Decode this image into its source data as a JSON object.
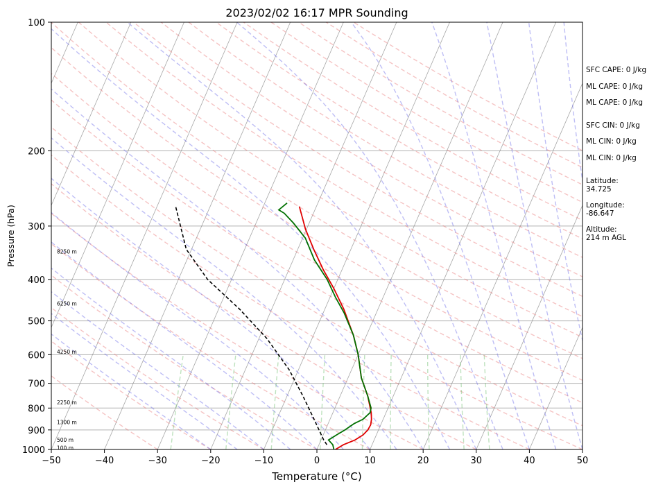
{
  "chart_data": {
    "type": "line",
    "title": "2023/02/02 16:17 MPR Sounding",
    "xlabel": "Temperature (°C)",
    "ylabel": "Pressure (hPa)",
    "xlim": [
      -50,
      50
    ],
    "ylim": [
      1000,
      100
    ],
    "y_scale": "log",
    "skew": "skew-T log-P",
    "grid": "horizontal isobars",
    "x_ticks": [
      "−50",
      "−40",
      "−30",
      "−20",
      "−10",
      "0",
      "10",
      "20",
      "30",
      "40",
      "50"
    ],
    "y_ticks": [
      "100",
      "200",
      "300",
      "400",
      "500",
      "600",
      "700",
      "800",
      "900",
      "1000"
    ],
    "height_labels": [
      {
        "text": "8250 m",
        "p": 345
      },
      {
        "text": "6250 m",
        "p": 457
      },
      {
        "text": "4250 m",
        "p": 592
      },
      {
        "text": "2250 m",
        "p": 778
      },
      {
        "text": "1300 m",
        "p": 866
      },
      {
        "text": "500 m",
        "p": 952
      },
      {
        "text": "100 m",
        "p": 995
      }
    ],
    "series": [
      {
        "role": "temperature",
        "color": "#e00000",
        "x": [
          3.5,
          4.6,
          6.4,
          7.5,
          8.0,
          8.1,
          7.8,
          7.2,
          5.2,
          2.5,
          0.0,
          -2.5,
          -6.4,
          -10.0,
          -13.5,
          -17.0,
          -20.2,
          -23.2
        ],
        "y": [
          1000,
          975,
          950,
          925,
          900,
          875,
          850,
          820,
          750,
          680,
          600,
          540,
          470,
          420,
          380,
          340,
          305,
          270
        ]
      },
      {
        "role": "dewpoint",
        "color": "#007000",
        "x": [
          3.2,
          2.6,
          1.4,
          2.5,
          3.7,
          4.9,
          6.2,
          7.0,
          6.8,
          5.2,
          2.5,
          0.0,
          -2.5,
          -6.0,
          -9.0,
          -12.0,
          -16.0,
          -19.5,
          -23.0,
          -25.5,
          -26.8,
          -25.8
        ],
        "y": [
          1000,
          975,
          950,
          925,
          900,
          870,
          850,
          820,
          800,
          750,
          680,
          600,
          540,
          480,
          440,
          400,
          360,
          320,
          295,
          280,
          275,
          265
        ]
      },
      {
        "role": "parcel",
        "color": "#000000",
        "x": [
          1.5,
          0.5,
          -3.0,
          -7.0,
          -11.8,
          -18.5,
          -26.0,
          -34.5,
          -41.0,
          -46.5
        ],
        "y": [
          975,
          950,
          850,
          750,
          650,
          550,
          470,
          400,
          340,
          270
        ]
      }
    ],
    "background": {
      "dry_adiabat_color": "#e87a7a",
      "moist_adiabat_color": "#6f6fe8",
      "mixing_ratio_color": "#6fbf6f",
      "isotherm_color": "#808080"
    },
    "annotations": {
      "sfc_cape": "SFC CAPE: 0 J/kg",
      "ml_cape_1": "ML CAPE: 0 J/kg",
      "ml_cape_2": "ML CAPE: 0 J/kg",
      "sfc_cin": "SFC CIN: 0 J/kg",
      "ml_cin_1": "ML CIN: 0 J/kg",
      "ml_cin_2": "ML CIN: 0 J/kg",
      "latitude": "Latitude:\n34.725",
      "longitude": "Longitude:\n-86.647",
      "altitude": "Altitude:\n214 m AGL"
    }
  }
}
